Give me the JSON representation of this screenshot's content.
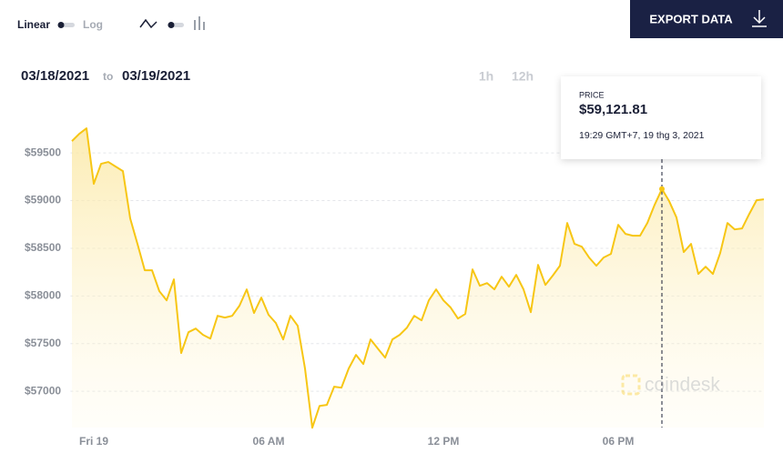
{
  "controls": {
    "scale_linear": "Linear",
    "scale_log": "Log",
    "export": "EXPORT DATA",
    "date_from": "03/18/2021",
    "date_sep": "to",
    "date_to": "03/19/2021",
    "ranges": [
      "1h",
      "12h"
    ]
  },
  "watermark": "coindesk",
  "chart_data": {
    "type": "line",
    "color": "#f7c614",
    "x": [
      -0.75,
      -0.5,
      -0.25,
      0,
      0.25,
      0.5,
      0.75,
      1,
      1.25,
      1.5,
      1.75,
      2,
      2.25,
      2.5,
      2.75,
      3,
      3.25,
      3.5,
      3.75,
      4,
      4.25,
      4.5,
      4.75,
      5,
      5.25,
      5.5,
      5.75,
      6,
      6.25,
      6.5,
      6.75,
      7,
      7.25,
      7.5,
      7.75,
      8,
      8.25,
      8.5,
      8.75,
      9,
      9.25,
      9.5,
      9.75,
      10,
      10.25,
      10.5,
      10.75,
      11,
      11.25,
      11.5,
      11.75,
      12,
      12.25,
      12.5,
      12.75,
      13,
      13.25,
      13.5,
      13.75,
      14,
      14.25,
      14.5,
      14.75,
      15,
      15.25,
      15.5,
      15.75,
      16,
      16.25,
      16.5,
      16.75,
      17,
      17.25,
      17.5,
      17.75,
      18,
      18.25,
      18.5,
      18.75,
      19,
      19.25,
      19.5,
      19.75,
      20,
      20.25,
      20.5,
      20.75,
      21,
      21.25,
      21.5,
      21.75,
      22,
      22.25,
      22.5,
      22.75,
      23
    ],
    "values": [
      59624,
      59700,
      59758,
      59176,
      59386,
      59405,
      59357,
      59309,
      58813,
      58546,
      58269,
      58269,
      58050,
      57954,
      58174,
      57401,
      57620,
      57658,
      57592,
      57553,
      57792,
      57773,
      57792,
      57897,
      58069,
      57821,
      57983,
      57802,
      57716,
      57544,
      57792,
      57687,
      57239,
      56618,
      56847,
      56857,
      57048,
      57038,
      57239,
      57382,
      57286,
      57544,
      57448,
      57353,
      57544,
      57592,
      57668,
      57792,
      57744,
      57954,
      58069,
      57954,
      57878,
      57763,
      57811,
      58279,
      58107,
      58135,
      58069,
      58202,
      58097,
      58221,
      58069,
      57830,
      58326,
      58116,
      58212,
      58317,
      58765,
      58546,
      58517,
      58403,
      58317,
      58403,
      58441,
      58746,
      58651,
      58632,
      58632,
      58765,
      58956,
      59121.81,
      58994,
      58823,
      58460,
      58546,
      58231,
      58307,
      58231,
      58450,
      58765,
      58698,
      58708,
      58861,
      59004,
      59013
    ],
    "xlim": [
      -0.8,
      23
    ],
    "xticks": [
      {
        "value": 0,
        "label": "Fri 19"
      },
      {
        "value": 6,
        "label": "06 AM"
      },
      {
        "value": 12,
        "label": "12 PM"
      },
      {
        "value": 18,
        "label": "06 PM"
      }
    ],
    "ylim": [
      56620,
      60150
    ],
    "yticks": [
      {
        "value": 57000,
        "label": "$57000"
      },
      {
        "value": 57500,
        "label": "$57500"
      },
      {
        "value": 58000,
        "label": "$58000"
      },
      {
        "value": 58500,
        "label": "$58500"
      },
      {
        "value": 59000,
        "label": "$59000"
      },
      {
        "value": 59500,
        "label": "$59500"
      }
    ],
    "grid": true,
    "tooltip": {
      "index": 81,
      "label": "PRICE",
      "value_label": "$59,121.81",
      "time": "19:29 GMT+7, 19 thg 3, 2021"
    }
  }
}
